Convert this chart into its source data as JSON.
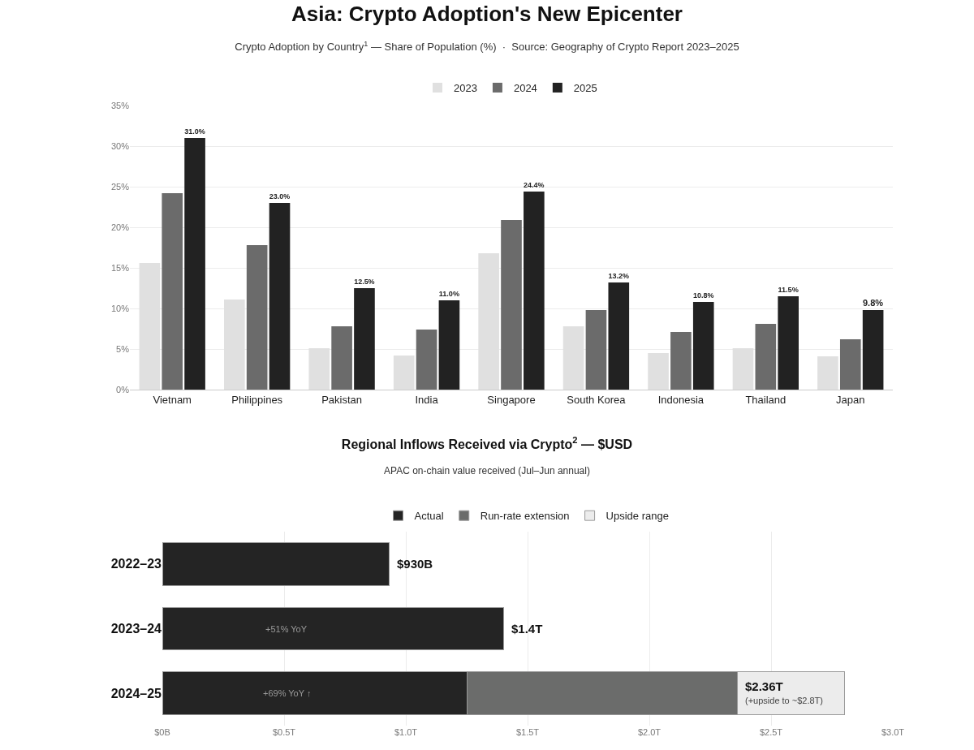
{
  "chart_data": [
    {
      "type": "bar",
      "title": "Asia: Crypto Adoption's New Epicenter",
      "subtitle": "Crypto Adoption by Country$^{1}$ — Share of Population (%)  ·  Source: Geography of Crypto Report 2023–2025",
      "categories": [
        "Vietnam",
        "Philippines",
        "Pakistan",
        "India",
        "Singapore",
        "South Korea",
        "Indonesia",
        "Thailand",
        "Japan"
      ],
      "series": [
        {
          "name": "2023",
          "color": "#e0e0e0",
          "values": [
            15.6,
            11.1,
            5.1,
            4.2,
            16.8,
            7.8,
            4.5,
            5.1,
            4.1
          ]
        },
        {
          "name": "2024",
          "color": "#6b6b6b",
          "values": [
            24.2,
            17.8,
            7.8,
            7.4,
            20.9,
            9.8,
            7.1,
            8.1,
            6.2
          ]
        },
        {
          "name": "2025",
          "color": "#222222",
          "values": [
            31.0,
            23.0,
            12.5,
            11.0,
            24.4,
            13.2,
            10.8,
            11.5,
            9.8
          ],
          "value_labels": [
            "31.0%",
            "23.0%",
            "12.5%",
            "11.0%",
            "24.4%",
            "13.2%",
            "10.8%",
            "11.5%",
            "9.8%"
          ]
        }
      ],
      "ylim": [
        0,
        35
      ],
      "yticks": [
        {
          "value": 0,
          "label": "0%"
        },
        {
          "value": 5,
          "label": "5%"
        },
        {
          "value": 10,
          "label": "10%"
        },
        {
          "value": 15,
          "label": "15%"
        },
        {
          "value": 20,
          "label": "20%"
        },
        {
          "value": 25,
          "label": "25%"
        },
        {
          "value": 30,
          "label": "30%"
        },
        {
          "value": 35,
          "label": "35%"
        }
      ],
      "grid": "y",
      "legend": "top"
    },
    {
      "type": "bar",
      "orientation": "horizontal",
      "stacked": true,
      "title": "Regional Inflows Received via Crypto$^{2}$ — $USD",
      "subtitle": "APAC on-chain value received (Jul–Jun annual)",
      "categories": [
        "2022–23",
        "2023–24",
        "2024–25"
      ],
      "series": [
        {
          "name": "Actual",
          "color": "#242424",
          "values": [
            0.93,
            1.4,
            1.25
          ]
        },
        {
          "name": "Run-rate extension",
          "color": "#6b6c6b",
          "values": [
            null,
            null,
            1.11
          ]
        },
        {
          "name": "Upside range",
          "color": "#ececec",
          "values": [
            null,
            null,
            0.44
          ]
        }
      ],
      "xlim": [
        0,
        3.0
      ],
      "xticks": [
        {
          "value": 0,
          "label": "$0B"
        },
        {
          "value": 0.5,
          "label": "$0.5T"
        },
        {
          "value": 1.0,
          "label": "$1.0T"
        },
        {
          "value": 1.5,
          "label": "$1.5T"
        },
        {
          "value": 2.0,
          "label": "$2.0T"
        },
        {
          "value": 2.5,
          "label": "$2.5T"
        },
        {
          "value": 3.0,
          "label": "$3.0T"
        }
      ],
      "annotations": [
        "+51% YoY",
        "+69% YoY ↑",
        {
          "text": "$930B",
          "x": 0.93,
          "y": "2022–23"
        },
        {
          "text": "$1.4T",
          "x": 1.4,
          "y": "2023–24"
        },
        {
          "text": "$2.36T",
          "x": 2.36,
          "y": "2024–25"
        },
        {
          "text": "(+upside to ~$2.8T)",
          "x": 2.36,
          "y": "2024–25"
        }
      ],
      "grid": "x",
      "legend": "top"
    }
  ]
}
